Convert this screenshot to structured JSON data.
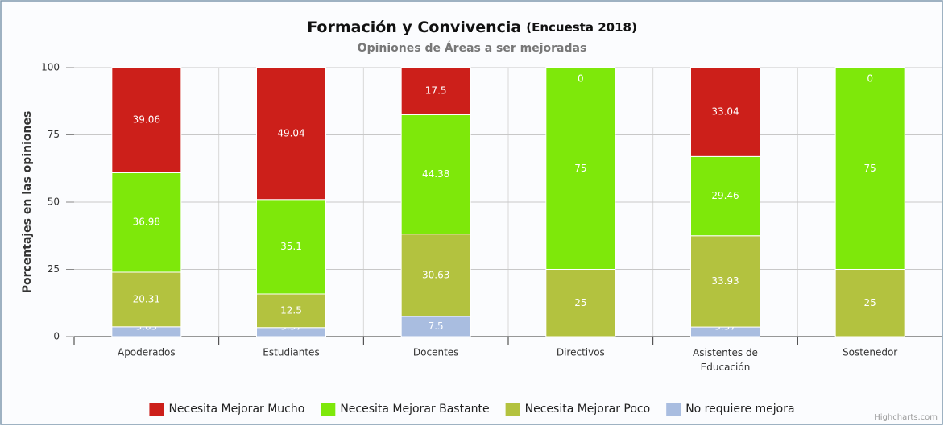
{
  "chart_data": {
    "type": "stacked_bar",
    "title": "Formación y Convivencia",
    "title_note": "(Encuesta 2018)",
    "subtitle": "Opiniones de Áreas a ser mejoradas",
    "y_label": "Porcentajes en las opiniones",
    "credits": "Highcharts.com",
    "categories": [
      "Apoderados",
      "Estudiantes",
      "Docentes",
      "Directivos",
      "Asistentes de Educación",
      "Sostenedor"
    ],
    "series": [
      {
        "name": "Necesita Mejorar Mucho",
        "color": "#cc1f1a",
        "values": [
          39.06,
          49.04,
          17.5,
          0,
          33.04,
          0
        ]
      },
      {
        "name": "Necesita Mejorar Bastante",
        "color": "#7ee80a",
        "values": [
          36.98,
          35.1,
          44.38,
          75,
          29.46,
          75
        ]
      },
      {
        "name": "Necesita Mejorar Poco",
        "color": "#b3c23f",
        "values": [
          20.31,
          12.5,
          30.63,
          25,
          33.93,
          25
        ]
      },
      {
        "name": "No requiere mejora",
        "color": "#a9bde0",
        "values": [
          3.65,
          3.37,
          7.5,
          0,
          3.57,
          0
        ]
      }
    ],
    "ylim": [
      0,
      100
    ],
    "yticks": [
      0,
      25,
      50,
      75,
      100
    ],
    "grid": true,
    "legend": "bottom"
  }
}
